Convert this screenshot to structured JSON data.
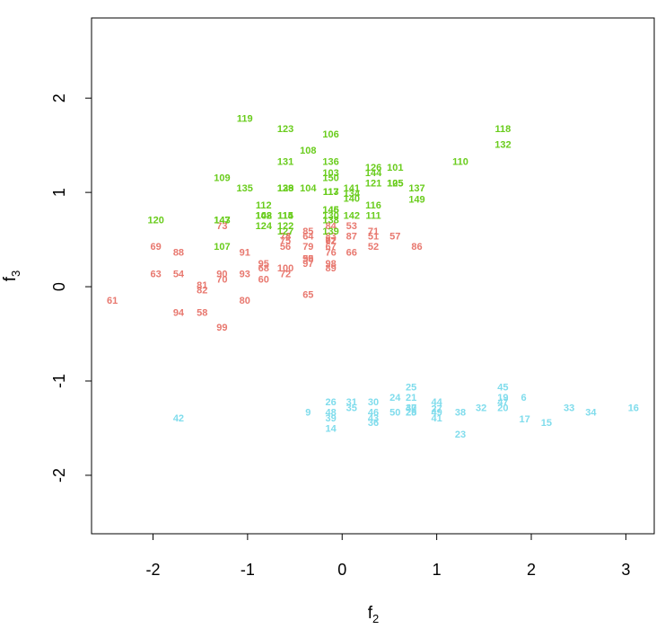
{
  "chart_data": {
    "type": "scatter",
    "title": "",
    "xlabel": "f",
    "xlabel_sub": "2",
    "ylabel": "f",
    "ylabel_sub": "3",
    "xlim": [
      -2.65,
      3.3
    ],
    "ylim": [
      -2.62,
      2.85
    ],
    "xticks": [
      -2,
      -1,
      0,
      1,
      2,
      3
    ],
    "yticks": [
      -2,
      -1,
      0,
      1,
      2
    ],
    "grid": false,
    "legend": "none",
    "marker": "text labels (observation index)",
    "colors": {
      "group1": "#e8786f",
      "group2": "#69cc1c",
      "group3": "#7fdcec"
    },
    "series": [
      {
        "color": "#7fdcec",
        "points": [
          {
            "label": "6",
            "x": 1.92,
            "y": -1.18
          },
          {
            "label": "9",
            "x": -0.36,
            "y": -1.34
          },
          {
            "label": "14",
            "x": -0.12,
            "y": -1.51
          },
          {
            "label": "15",
            "x": 2.16,
            "y": -1.45
          },
          {
            "label": "16",
            "x": 3.08,
            "y": -1.29
          },
          {
            "label": "17",
            "x": 1.93,
            "y": -1.41
          },
          {
            "label": "19",
            "x": 1.7,
            "y": -1.18
          },
          {
            "label": "20",
            "x": 1.7,
            "y": -1.29
          },
          {
            "label": "21",
            "x": 0.73,
            "y": -1.18
          },
          {
            "label": "23",
            "x": 1.25,
            "y": -1.57
          },
          {
            "label": "24",
            "x": 0.56,
            "y": -1.18
          },
          {
            "label": "25",
            "x": 0.73,
            "y": -1.07
          },
          {
            "label": "26",
            "x": -0.12,
            "y": -1.23
          },
          {
            "label": "27",
            "x": 1.0,
            "y": -1.3
          },
          {
            "label": "28",
            "x": 0.73,
            "y": -1.34
          },
          {
            "label": "29",
            "x": 0.73,
            "y": -1.34
          },
          {
            "label": "30",
            "x": 0.33,
            "y": -1.23
          },
          {
            "label": "31",
            "x": 0.1,
            "y": -1.23
          },
          {
            "label": "32",
            "x": 1.47,
            "y": -1.29
          },
          {
            "label": "33",
            "x": 2.4,
            "y": -1.29
          },
          {
            "label": "34",
            "x": 2.63,
            "y": -1.34
          },
          {
            "label": "35",
            "x": 0.1,
            "y": -1.29
          },
          {
            "label": "36",
            "x": 0.33,
            "y": -1.45
          },
          {
            "label": "37",
            "x": 0.73,
            "y": -1.29
          },
          {
            "label": "38",
            "x": 1.25,
            "y": -1.34
          },
          {
            "label": "39",
            "x": -0.12,
            "y": -1.4
          },
          {
            "label": "40",
            "x": 0.73,
            "y": -1.29
          },
          {
            "label": "41",
            "x": 1.0,
            "y": -1.4
          },
          {
            "label": "42",
            "x": -1.73,
            "y": -1.4
          },
          {
            "label": "43",
            "x": 0.33,
            "y": -1.4
          },
          {
            "label": "44",
            "x": 1.0,
            "y": -1.23
          },
          {
            "label": "45",
            "x": 1.7,
            "y": -1.07
          },
          {
            "label": "46",
            "x": 0.33,
            "y": -1.34
          },
          {
            "label": "47",
            "x": 1.7,
            "y": -1.23
          },
          {
            "label": "48",
            "x": -0.12,
            "y": -1.34
          },
          {
            "label": "49",
            "x": 1.0,
            "y": -1.34
          },
          {
            "label": "50",
            "x": 0.56,
            "y": -1.34
          }
        ]
      },
      {
        "color": "#e8786f",
        "points": [
          {
            "label": "51",
            "x": 0.33,
            "y": 0.53
          },
          {
            "label": "52",
            "x": 0.33,
            "y": 0.42
          },
          {
            "label": "53",
            "x": 0.1,
            "y": 0.64
          },
          {
            "label": "54",
            "x": -1.73,
            "y": 0.13
          },
          {
            "label": "55",
            "x": -0.36,
            "y": 0.29
          },
          {
            "label": "56",
            "x": -0.6,
            "y": 0.42
          },
          {
            "label": "57",
            "x": 0.56,
            "y": 0.53
          },
          {
            "label": "58",
            "x": -1.48,
            "y": -0.28
          },
          {
            "label": "59",
            "x": -0.36,
            "y": 0.29
          },
          {
            "label": "60",
            "x": -0.83,
            "y": 0.07
          },
          {
            "label": "61",
            "x": -2.43,
            "y": -0.15
          },
          {
            "label": "62",
            "x": -0.12,
            "y": 0.48
          },
          {
            "label": "63",
            "x": -1.97,
            "y": 0.13
          },
          {
            "label": "64",
            "x": -0.36,
            "y": 0.53
          },
          {
            "label": "65",
            "x": -0.36,
            "y": -0.09
          },
          {
            "label": "66",
            "x": 0.1,
            "y": 0.36
          },
          {
            "label": "67",
            "x": -0.12,
            "y": 0.42
          },
          {
            "label": "68",
            "x": -0.83,
            "y": 0.19
          },
          {
            "label": "69",
            "x": -1.97,
            "y": 0.42
          },
          {
            "label": "70",
            "x": -1.27,
            "y": 0.07
          },
          {
            "label": "71",
            "x": 0.33,
            "y": 0.58
          },
          {
            "label": "72",
            "x": -0.6,
            "y": 0.13
          },
          {
            "label": "73",
            "x": -1.27,
            "y": 0.64
          },
          {
            "label": "74",
            "x": -0.6,
            "y": 0.53
          },
          {
            "label": "75",
            "x": -0.6,
            "y": 0.48
          },
          {
            "label": "76",
            "x": -0.12,
            "y": 0.36
          },
          {
            "label": "77",
            "x": -0.12,
            "y": 0.48
          },
          {
            "label": "78",
            "x": -0.6,
            "y": 0.53
          },
          {
            "label": "79",
            "x": -0.36,
            "y": 0.42
          },
          {
            "label": "80",
            "x": -1.03,
            "y": -0.15
          },
          {
            "label": "81",
            "x": -1.48,
            "y": 0.01
          },
          {
            "label": "82",
            "x": -1.48,
            "y": -0.04
          },
          {
            "label": "83",
            "x": -0.12,
            "y": 0.53
          },
          {
            "label": "84",
            "x": -0.12,
            "y": 0.64
          },
          {
            "label": "85",
            "x": -0.36,
            "y": 0.58
          },
          {
            "label": "86",
            "x": 0.79,
            "y": 0.42
          },
          {
            "label": "87",
            "x": 0.1,
            "y": 0.53
          },
          {
            "label": "88",
            "x": -1.73,
            "y": 0.36
          },
          {
            "label": "89",
            "x": -0.12,
            "y": 0.19
          },
          {
            "label": "90",
            "x": -1.27,
            "y": 0.13
          },
          {
            "label": "91",
            "x": -1.03,
            "y": 0.36
          },
          {
            "label": "92",
            "x": -0.12,
            "y": 0.48
          },
          {
            "label": "93",
            "x": -1.03,
            "y": 0.13
          },
          {
            "label": "94",
            "x": -1.73,
            "y": -0.28
          },
          {
            "label": "95",
            "x": -0.83,
            "y": 0.24
          },
          {
            "label": "96",
            "x": -0.36,
            "y": 0.29
          },
          {
            "label": "97",
            "x": -0.36,
            "y": 0.24
          },
          {
            "label": "98",
            "x": -0.12,
            "y": 0.24
          },
          {
            "label": "99",
            "x": -1.27,
            "y": -0.44
          },
          {
            "label": "100",
            "x": -0.6,
            "y": 0.19
          }
        ]
      },
      {
        "color": "#69cc1c",
        "points": [
          {
            "label": "101",
            "x": 0.56,
            "y": 1.26
          },
          {
            "label": "102",
            "x": -0.83,
            "y": 0.75
          },
          {
            "label": "103",
            "x": -0.12,
            "y": 1.2
          },
          {
            "label": "104",
            "x": -0.36,
            "y": 1.04
          },
          {
            "label": "105",
            "x": 0.56,
            "y": 1.09
          },
          {
            "label": "106",
            "x": -0.12,
            "y": 1.61
          },
          {
            "label": "107",
            "x": -1.27,
            "y": 0.42
          },
          {
            "label": "108",
            "x": -0.36,
            "y": 1.44
          },
          {
            "label": "109",
            "x": -1.27,
            "y": 1.15
          },
          {
            "label": "110",
            "x": 1.25,
            "y": 1.32
          },
          {
            "label": "111",
            "x": 0.33,
            "y": 0.75
          },
          {
            "label": "112",
            "x": -0.83,
            "y": 0.86
          },
          {
            "label": "113",
            "x": -0.12,
            "y": 1.0
          },
          {
            "label": "114",
            "x": -0.6,
            "y": 0.75
          },
          {
            "label": "115",
            "x": -0.6,
            "y": 0.75
          },
          {
            "label": "116",
            "x": 0.33,
            "y": 0.86
          },
          {
            "label": "117",
            "x": -0.12,
            "y": 1.0
          },
          {
            "label": "118",
            "x": 1.7,
            "y": 1.67
          },
          {
            "label": "119",
            "x": -1.03,
            "y": 1.78
          },
          {
            "label": "120",
            "x": -1.97,
            "y": 0.7
          },
          {
            "label": "121",
            "x": 0.33,
            "y": 1.09
          },
          {
            "label": "122",
            "x": -0.6,
            "y": 0.64
          },
          {
            "label": "123",
            "x": -0.6,
            "y": 1.67
          },
          {
            "label": "124",
            "x": -0.83,
            "y": 0.64
          },
          {
            "label": "125",
            "x": 0.56,
            "y": 1.09
          },
          {
            "label": "126",
            "x": 0.33,
            "y": 1.26
          },
          {
            "label": "127",
            "x": -0.6,
            "y": 0.58
          },
          {
            "label": "128",
            "x": -0.6,
            "y": 1.04
          },
          {
            "label": "129",
            "x": -0.6,
            "y": 1.04
          },
          {
            "label": "130",
            "x": -0.12,
            "y": 0.75
          },
          {
            "label": "131",
            "x": -0.6,
            "y": 1.32
          },
          {
            "label": "132",
            "x": 1.7,
            "y": 1.5
          },
          {
            "label": "133",
            "x": -0.6,
            "y": 1.04
          },
          {
            "label": "134",
            "x": 0.1,
            "y": 0.98
          },
          {
            "label": "135",
            "x": -1.03,
            "y": 1.04
          },
          {
            "label": "136",
            "x": -0.12,
            "y": 1.32
          },
          {
            "label": "137",
            "x": 0.79,
            "y": 1.04
          },
          {
            "label": "138",
            "x": -0.12,
            "y": 0.7
          },
          {
            "label": "139",
            "x": -0.12,
            "y": 0.58
          },
          {
            "label": "140",
            "x": 0.1,
            "y": 0.93
          },
          {
            "label": "141",
            "x": 0.1,
            "y": 1.04
          },
          {
            "label": "142",
            "x": 0.1,
            "y": 0.75
          },
          {
            "label": "143",
            "x": -1.27,
            "y": 0.7
          },
          {
            "label": "144",
            "x": 0.33,
            "y": 1.2
          },
          {
            "label": "145",
            "x": -0.12,
            "y": 0.81
          },
          {
            "label": "146",
            "x": -0.12,
            "y": 0.81
          },
          {
            "label": "147",
            "x": -1.27,
            "y": 0.7
          },
          {
            "label": "148",
            "x": -0.83,
            "y": 0.75
          },
          {
            "label": "149",
            "x": 0.79,
            "y": 0.92
          },
          {
            "label": "150",
            "x": -0.12,
            "y": 1.15
          }
        ]
      }
    ]
  }
}
